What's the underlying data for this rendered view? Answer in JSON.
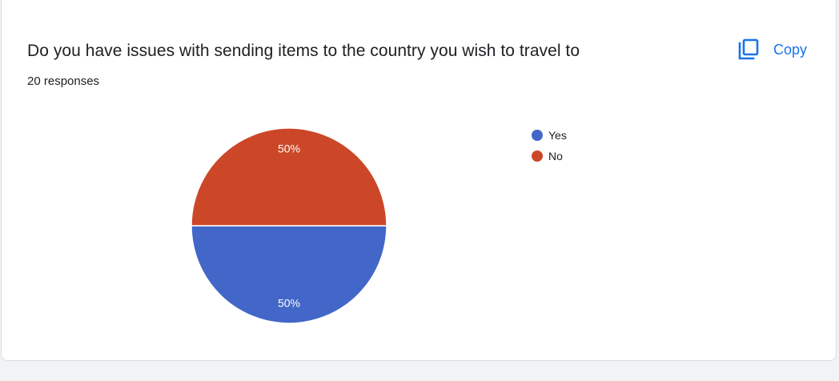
{
  "card": {
    "title": "Do you have issues with sending items to the country you wish to travel to",
    "responses": "20 responses",
    "copy_label": "Copy"
  },
  "colors": {
    "yes": "#4267c9",
    "no": "#cc4727",
    "accent": "#1a73e8"
  },
  "chart_data": {
    "type": "pie",
    "title": "Do you have issues with sending items to the country you wish to travel to",
    "categories": [
      "Yes",
      "No"
    ],
    "values": [
      50,
      50
    ],
    "labels": [
      "50%",
      "50%"
    ],
    "legend": "right"
  }
}
